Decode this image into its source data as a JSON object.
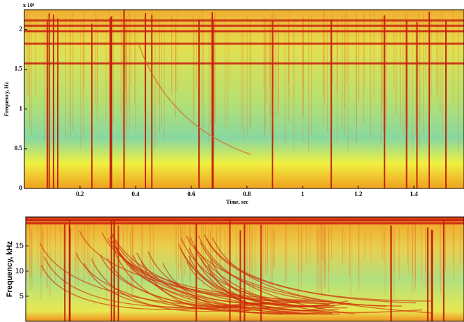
{
  "chart_data": [
    {
      "type": "spectrogram",
      "xlabel": "Time, sec",
      "ylabel": "Frequency, Hz",
      "y_multiplier": "x 10⁴",
      "xlim": [
        0,
        1.58
      ],
      "xticks": [
        0.2,
        0.4,
        0.6,
        0.8,
        1,
        1.2,
        1.4
      ],
      "ylim": [
        0,
        2.25
      ],
      "yticks": [
        0,
        0.5,
        1,
        1.5,
        2
      ]
    },
    {
      "type": "spectrogram",
      "ylabel": "Frequency, kHz",
      "ylim": [
        0,
        20.8
      ],
      "yticks": [
        5,
        10,
        15
      ]
    }
  ]
}
